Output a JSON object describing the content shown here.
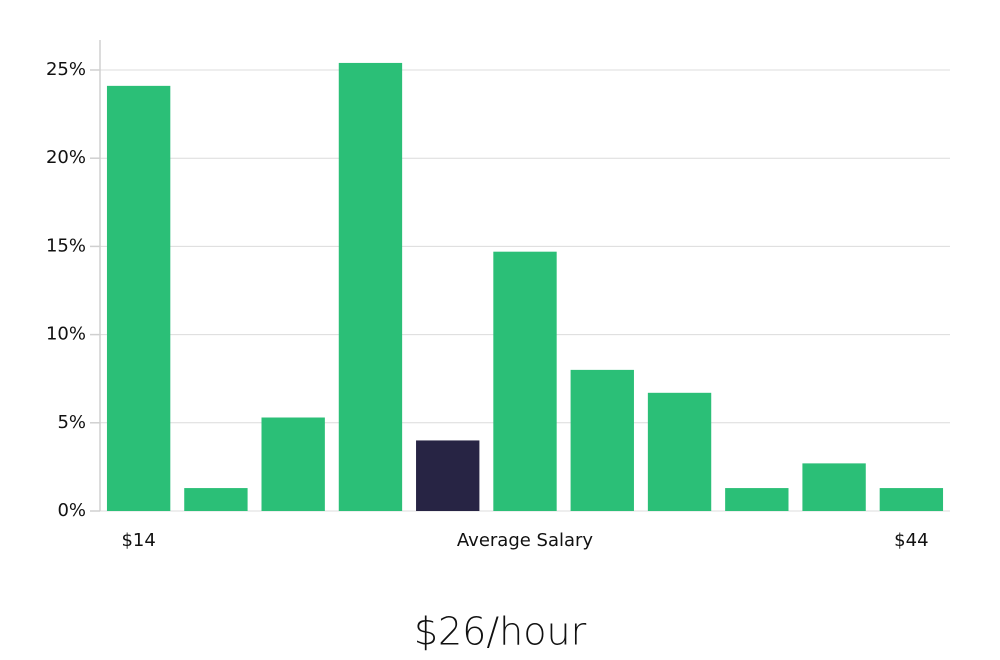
{
  "chart_data": {
    "type": "bar",
    "categories": [
      "$14",
      null,
      null,
      null,
      null,
      null,
      null,
      null,
      null,
      null,
      "$44"
    ],
    "values": [
      24.1,
      1.3,
      5.3,
      25.4,
      4.0,
      14.7,
      8.0,
      6.7,
      1.3,
      2.7,
      1.3
    ],
    "colors": [
      "#2bbf77",
      "#2bbf77",
      "#2bbf77",
      "#2bbf77",
      "#272444",
      "#2bbf77",
      "#2bbf77",
      "#2bbf77",
      "#2bbf77",
      "#2bbf77",
      "#2bbf77"
    ],
    "x_label": "Average Salary",
    "annotation": "$26/hour",
    "ylim": [
      0,
      26.7
    ],
    "yticks": [
      {
        "value": 0,
        "label": "0%"
      },
      {
        "value": 5,
        "label": "5%"
      },
      {
        "value": 10,
        "label": "10%"
      },
      {
        "value": 15,
        "label": "15%"
      },
      {
        "value": 20,
        "label": "20%"
      },
      {
        "value": 25,
        "label": "25%"
      }
    ],
    "grid": true
  }
}
